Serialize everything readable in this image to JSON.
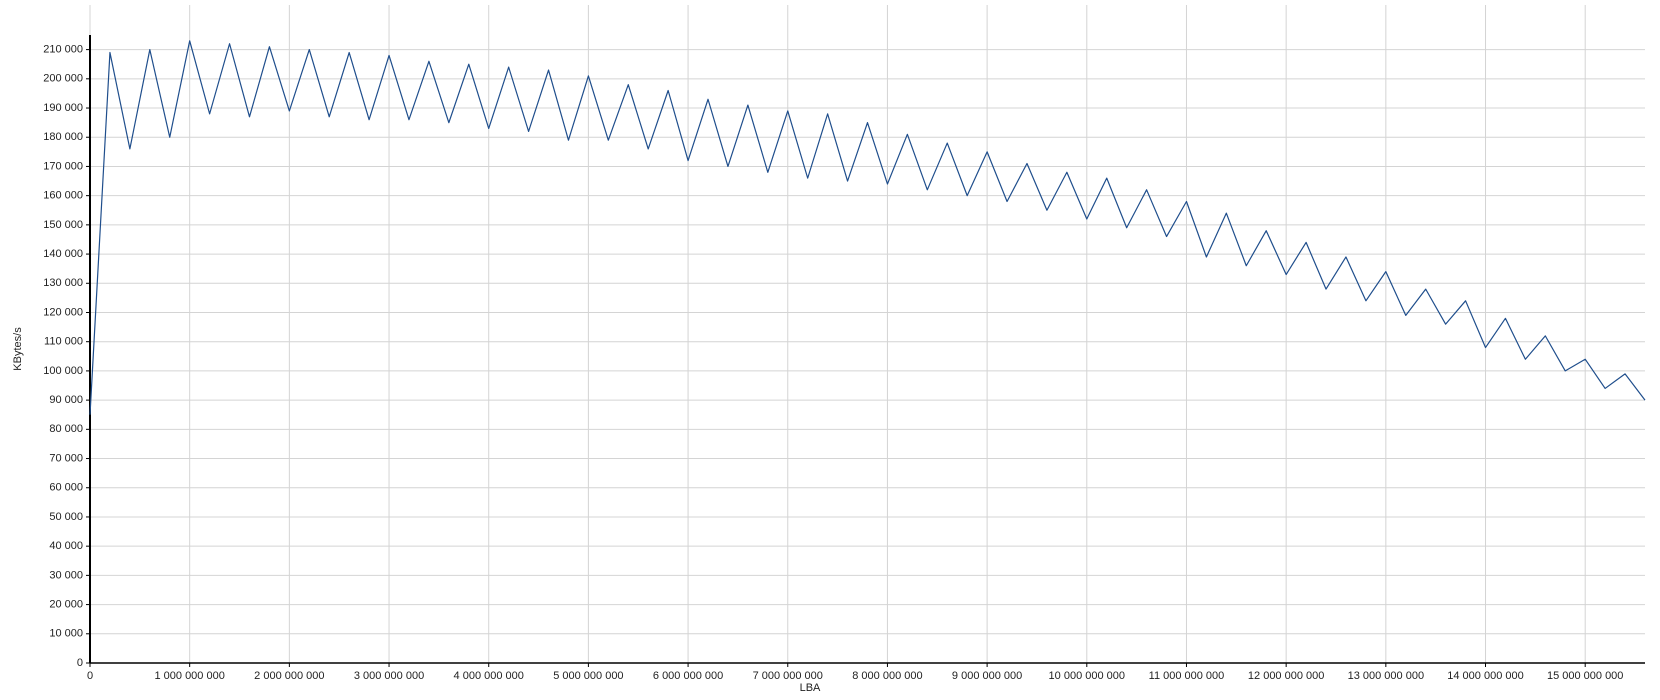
{
  "chart_data": {
    "type": "line",
    "x_label": "LBA",
    "y_label": "KBytes/s",
    "xlim": [
      0,
      15600000000
    ],
    "ylim": [
      0,
      215000
    ],
    "xticks": [
      0,
      {
        "value": 1000000000,
        "label": "1 000 000 000"
      },
      {
        "value": 2000000000,
        "label": "2 000 000 000"
      },
      {
        "value": 3000000000,
        "label": "3 000 000 000"
      },
      {
        "value": 4000000000,
        "label": "4 000 000 000"
      },
      {
        "value": 5000000000,
        "label": "5 000 000 000"
      },
      {
        "value": 6000000000,
        "label": "6 000 000 000"
      },
      {
        "value": 7000000000,
        "label": "7 000 000 000"
      },
      {
        "value": 8000000000,
        "label": "8 000 000 000"
      },
      {
        "value": 9000000000,
        "label": "9 000 000 000"
      },
      {
        "value": 10000000000,
        "label": "10 000 000 000"
      },
      {
        "value": 11000000000,
        "label": "11 000 000 000"
      },
      {
        "value": 12000000000,
        "label": "12 000 000 000"
      },
      {
        "value": 13000000000,
        "label": "13 000 000 000"
      },
      {
        "value": 14000000000,
        "label": "14 000 000 000"
      },
      {
        "value": 15000000000,
        "label": "15 000 000 000"
      }
    ],
    "yticks": [
      0,
      {
        "value": 10000,
        "label": "10 000"
      },
      {
        "value": 20000,
        "label": "20 000"
      },
      {
        "value": 30000,
        "label": "30 000"
      },
      {
        "value": 40000,
        "label": "40 000"
      },
      {
        "value": 50000,
        "label": "50 000"
      },
      {
        "value": 60000,
        "label": "60 000"
      },
      {
        "value": 70000,
        "label": "70 000"
      },
      {
        "value": 80000,
        "label": "80 000"
      },
      {
        "value": 90000,
        "label": "90 000"
      },
      {
        "value": 100000,
        "label": "100 000"
      },
      {
        "value": 110000,
        "label": "110 000"
      },
      {
        "value": 120000,
        "label": "120 000"
      },
      {
        "value": 130000,
        "label": "130 000"
      },
      {
        "value": 140000,
        "label": "140 000"
      },
      {
        "value": 150000,
        "label": "150 000"
      },
      {
        "value": 160000,
        "label": "160 000"
      },
      {
        "value": 170000,
        "label": "170 000"
      },
      {
        "value": 180000,
        "label": "180 000"
      },
      {
        "value": 190000,
        "label": "190 000"
      },
      {
        "value": 200000,
        "label": "200 000"
      },
      {
        "value": 210000,
        "label": "210 000"
      }
    ],
    "grid": true,
    "x": [
      0,
      200000000,
      400000000,
      600000000,
      800000000,
      1000000000,
      1200000000,
      1400000000,
      1600000000,
      1800000000,
      2000000000,
      2200000000,
      2400000000,
      2600000000,
      2800000000,
      3000000000,
      3200000000,
      3400000000,
      3600000000,
      3800000000,
      4000000000,
      4200000000,
      4400000000,
      4600000000,
      4800000000,
      5000000000,
      5200000000,
      5400000000,
      5600000000,
      5800000000,
      6000000000,
      6200000000,
      6400000000,
      6600000000,
      6800000000,
      7000000000,
      7200000000,
      7400000000,
      7600000000,
      7800000000,
      8000000000,
      8200000000,
      8400000000,
      8600000000,
      8800000000,
      9000000000,
      9200000000,
      9400000000,
      9600000000,
      9800000000,
      10000000000,
      10200000000,
      10400000000,
      10600000000,
      10800000000,
      11000000000,
      11200000000,
      11400000000,
      11600000000,
      11800000000,
      12000000000,
      12200000000,
      12400000000,
      12600000000,
      12800000000,
      13000000000,
      13200000000,
      13400000000,
      13600000000,
      13800000000,
      14000000000,
      14200000000,
      14400000000,
      14600000000,
      14800000000,
      15000000000,
      15200000000,
      15400000000,
      15600000000
    ],
    "series": [
      {
        "color": "#1f4e8c",
        "values": [
          85000,
          209000,
          176000,
          210000,
          180000,
          213000,
          188000,
          212000,
          187000,
          211000,
          189000,
          210000,
          187000,
          209000,
          186000,
          208000,
          186000,
          206000,
          185000,
          205000,
          183000,
          204000,
          182000,
          203000,
          179000,
          201000,
          179000,
          198000,
          176000,
          196000,
          172000,
          193000,
          170000,
          191000,
          168000,
          189000,
          166000,
          188000,
          165000,
          185000,
          164000,
          181000,
          162000,
          178000,
          160000,
          175000,
          158000,
          171000,
          155000,
          168000,
          152000,
          166000,
          149000,
          162000,
          146000,
          158000,
          139000,
          154000,
          136000,
          148000,
          133000,
          144000,
          128000,
          139000,
          124000,
          134000,
          119000,
          128000,
          116000,
          124000,
          108000,
          118000,
          104000,
          112000,
          100000,
          104000,
          94000,
          99000,
          90000
        ]
      }
    ]
  }
}
